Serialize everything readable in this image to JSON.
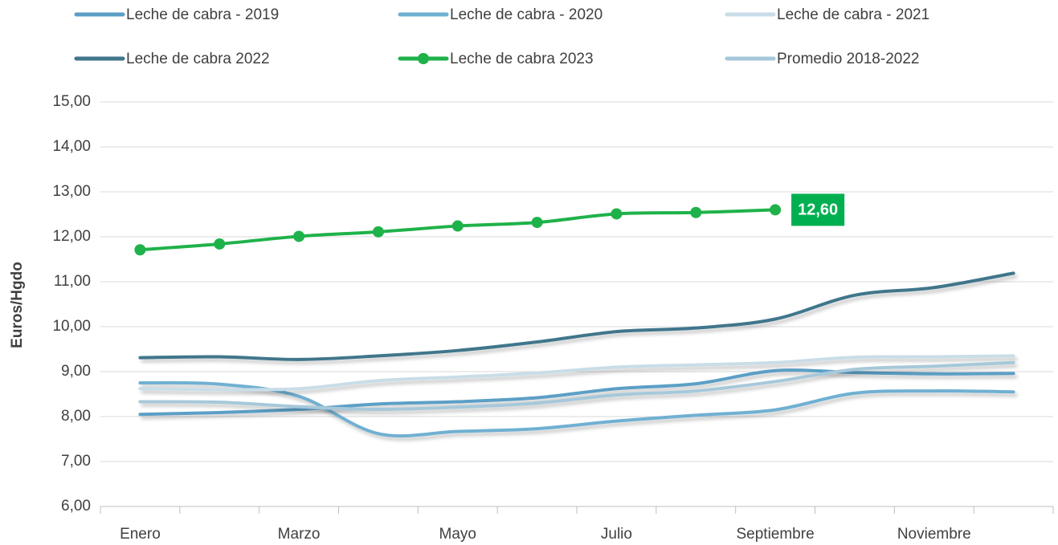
{
  "chart_data": {
    "type": "line",
    "y_label": "Euros/Hgdo",
    "categories": [
      "Enero",
      null,
      "Marzo",
      null,
      "Mayo",
      null,
      "Julio",
      null,
      "Septiembre",
      null,
      "Noviembre",
      null
    ],
    "ylim": [
      6,
      15
    ],
    "yticks": [
      {
        "value": 6,
        "label": "6,00"
      },
      {
        "value": 7,
        "label": "7,00"
      },
      {
        "value": 8,
        "label": "8,00"
      },
      {
        "value": 9,
        "label": "9,00"
      },
      {
        "value": 10,
        "label": "10,00"
      },
      {
        "value": 11,
        "label": "11,00"
      },
      {
        "value": 12,
        "label": "12,00"
      },
      {
        "value": 13,
        "label": "13,00"
      },
      {
        "value": 14,
        "label": "14,00"
      },
      {
        "value": 15,
        "label": "15,00"
      }
    ],
    "grid": true,
    "series": [
      {
        "name": "Leche de cabra - 2019",
        "color": "#5b9fc6",
        "values": [
          8.05,
          8.09,
          8.16,
          8.28,
          8.33,
          8.42,
          8.62,
          8.73,
          9.02,
          8.98,
          8.95,
          8.96
        ]
      },
      {
        "name": "Leche de cabra - 2020",
        "color": "#6fb0d2",
        "values": [
          8.75,
          8.72,
          8.45,
          7.62,
          7.67,
          7.73,
          7.9,
          8.03,
          8.15,
          8.52,
          8.57,
          8.55
        ]
      },
      {
        "name": "Leche de cabra - 2021",
        "color": "#c9dde8",
        "values": [
          8.62,
          8.6,
          8.62,
          8.8,
          8.88,
          8.97,
          9.1,
          9.15,
          9.2,
          9.32,
          9.33,
          9.35
        ]
      },
      {
        "name": "Leche de cabra 2022",
        "color": "#41768b",
        "values": [
          9.31,
          9.33,
          9.27,
          9.35,
          9.47,
          9.66,
          9.89,
          9.97,
          10.17,
          10.7,
          10.87,
          11.19
        ]
      },
      {
        "name": "Promedio 2018-2022",
        "color": "#a6c8da",
        "values": [
          8.33,
          8.32,
          8.22,
          8.16,
          8.21,
          8.3,
          8.48,
          8.57,
          8.78,
          9.05,
          9.12,
          9.2
        ]
      },
      {
        "name": "Leche de cabra 2023",
        "color": "#1fb24a",
        "markers": true,
        "values": [
          11.71,
          11.84,
          12.01,
          12.11,
          12.24,
          12.32,
          12.51,
          12.54,
          12.6,
          null,
          null,
          null
        ],
        "value_labels": [
          null,
          null,
          null,
          null,
          null,
          null,
          null,
          null,
          "12,60",
          null,
          null,
          null
        ],
        "label_color": "#00b050"
      }
    ]
  }
}
